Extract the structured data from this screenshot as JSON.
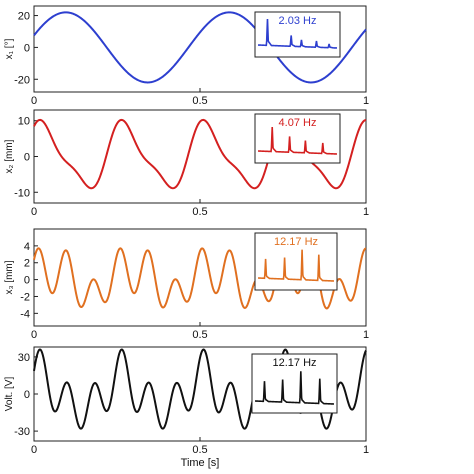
{
  "chart_data": [
    {
      "type": "line",
      "ylabel": "x₁ [°]",
      "yticks": [
        "20",
        "0",
        "-20"
      ],
      "ytick_values": [
        20,
        0,
        -20
      ],
      "ylim": [
        -28,
        26
      ],
      "xlim": [
        0,
        1
      ],
      "xticks": [
        "0",
        "0.5",
        "1"
      ],
      "xtick_values": [
        0,
        0.5,
        1
      ],
      "color": "#2d3fcf",
      "components": [
        {
          "amp": 22,
          "freq": 2.03,
          "phase": 0.35
        }
      ],
      "offset": 0,
      "inset": {
        "annotation": "2.03 Hz",
        "text_color": "#2d3fcf",
        "peaks": [
          0.12,
          0.42,
          0.55,
          0.74,
          0.9
        ],
        "peak_heights": [
          0.85,
          0.35,
          0.22,
          0.2,
          0.12
        ]
      }
    },
    {
      "type": "line",
      "ylabel": "x₂ [mm]",
      "yticks": [
        "10",
        "0",
        "-10"
      ],
      "ytick_values": [
        10,
        0,
        -10
      ],
      "ylim": [
        -13,
        13
      ],
      "xlim": [
        0,
        1
      ],
      "xticks": [
        "0",
        "0.5",
        "1"
      ],
      "xtick_values": [
        0,
        0.5,
        1
      ],
      "color": "#d42020",
      "components": [
        {
          "amp": 8.5,
          "freq": 4.07,
          "phase": 0.8
        },
        {
          "amp": 2.5,
          "freq": 8.14,
          "phase": 1.2
        }
      ],
      "offset": 0,
      "inset": {
        "annotation": "4.07 Hz",
        "text_color": "#d42020",
        "peaks": [
          0.18,
          0.4,
          0.6,
          0.82
        ],
        "peak_heights": [
          0.7,
          0.45,
          0.35,
          0.3
        ]
      }
    },
    {
      "type": "line",
      "ylabel": "x₃ [mm]",
      "yticks": [
        "4",
        "2",
        "0",
        "-2",
        "-4"
      ],
      "ytick_values": [
        4,
        2,
        0,
        -2,
        -4
      ],
      "ylim": [
        -5.5,
        6
      ],
      "xlim": [
        0,
        1
      ],
      "xticks": [
        "0",
        "0.5",
        "1"
      ],
      "xtick_values": [
        0,
        0.5,
        1
      ],
      "color": "#e07020",
      "components": [
        {
          "amp": 1.6,
          "freq": 4.07,
          "phase": 0.3
        },
        {
          "amp": 2.4,
          "freq": 12.17,
          "phase": 0.5
        },
        {
          "amp": 0.8,
          "freq": 8.14,
          "phase": 2.0
        }
      ],
      "offset": 0,
      "inset": {
        "annotation": "12.17 Hz",
        "text_color": "#e07020",
        "peaks": [
          0.1,
          0.35,
          0.58,
          0.8
        ],
        "peak_heights": [
          0.45,
          0.5,
          0.7,
          0.6
        ]
      }
    },
    {
      "type": "line",
      "ylabel": "Volt. [V]",
      "yticks": [
        "30",
        "0",
        "-30"
      ],
      "ytick_values": [
        30,
        0,
        -30
      ],
      "ylim": [
        -38,
        38
      ],
      "xlim": [
        0,
        1
      ],
      "xticks": [
        "0",
        "0.5",
        "1"
      ],
      "xtick_values": [
        0,
        0.5,
        1
      ],
      "xlabel": "Time [s]",
      "color": "#111111",
      "components": [
        {
          "amp": 14,
          "freq": 4.07,
          "phase": 1.1
        },
        {
          "amp": 18,
          "freq": 12.17,
          "phase": 0.2
        },
        {
          "amp": 4,
          "freq": 8.14,
          "phase": 0.7
        }
      ],
      "offset": 0,
      "inset": {
        "annotation": "12.17 Hz",
        "text_color": "#111111",
        "peaks": [
          0.12,
          0.35,
          0.58,
          0.82
        ],
        "peak_heights": [
          0.45,
          0.5,
          0.7,
          0.55
        ]
      }
    }
  ]
}
